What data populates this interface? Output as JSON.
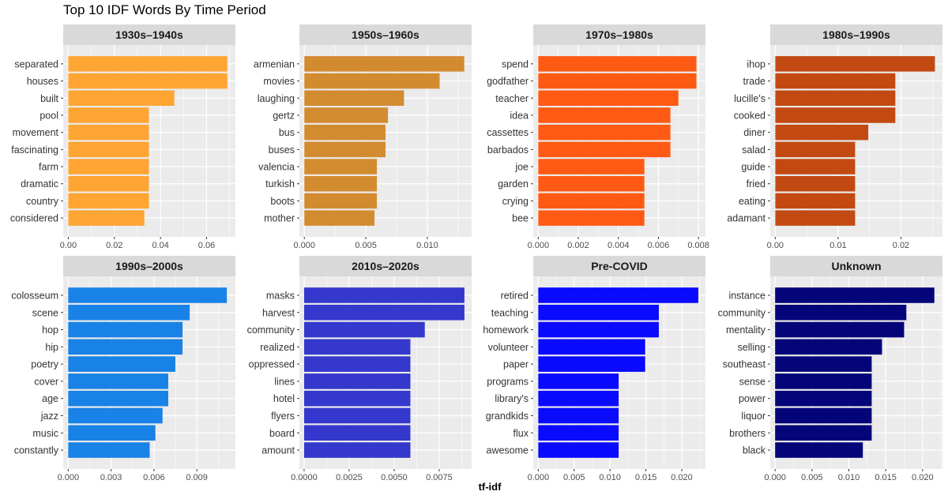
{
  "title": "Top 10 IDF Words By Time Period",
  "xlabel": "tf-idf",
  "chart_data": {
    "type": "bar",
    "orientation": "horizontal",
    "title": "Top 10 IDF Words By Time Period",
    "xlabel": "tf-idf",
    "ylabel": "",
    "grid": true,
    "legend": "none",
    "facets": [
      {
        "panel": "1930s–1940s",
        "color": "#FFA533",
        "xlim": [
          -0.0022,
          0.0725
        ],
        "xticks": [
          0,
          0.02,
          0.04,
          0.06
        ],
        "xtick_labels": [
          "0.00",
          "0.02",
          "0.04",
          "0.06"
        ],
        "categories": [
          "separated",
          "houses",
          "built",
          "pool",
          "movement",
          "fascinating",
          "farm",
          "dramatic",
          "country",
          "considered"
        ],
        "values": [
          0.069,
          0.069,
          0.046,
          0.035,
          0.035,
          0.035,
          0.035,
          0.035,
          0.035,
          0.033
        ]
      },
      {
        "panel": "1950s–1960s",
        "color": "#D38B30",
        "xlim": [
          -0.0004,
          0.0136
        ],
        "xticks": [
          0,
          0.005,
          0.01
        ],
        "xtick_labels": [
          "0.000",
          "0.005",
          "0.010"
        ],
        "categories": [
          "armenian",
          "movies",
          "laughing",
          "gertz",
          "bus",
          "buses",
          "valencia",
          "turkish",
          "boots",
          "mother"
        ],
        "values": [
          0.013,
          0.011,
          0.0081,
          0.0068,
          0.0066,
          0.0066,
          0.0059,
          0.0059,
          0.0059,
          0.0057
        ]
      },
      {
        "panel": "1970s–1980s",
        "color": "#FF5A14",
        "xlim": [
          -0.00025,
          0.00835
        ],
        "xticks": [
          0,
          0.002,
          0.004,
          0.006,
          0.008
        ],
        "xtick_labels": [
          "0.000",
          "0.002",
          "0.004",
          "0.006",
          "0.008"
        ],
        "categories": [
          "spend",
          "godfather",
          "teacher",
          "idea",
          "cassettes",
          "barbados",
          "joe",
          "garden",
          "crying",
          "bee"
        ],
        "values": [
          0.0079,
          0.0079,
          0.007,
          0.0066,
          0.0066,
          0.0066,
          0.0053,
          0.0053,
          0.0053,
          0.0053
        ]
      },
      {
        "panel": "1980s–1990s",
        "color": "#C24A12",
        "xlim": [
          -0.0008,
          0.0266
        ],
        "xticks": [
          0,
          0.01,
          0.02
        ],
        "xtick_labels": [
          "0.00",
          "0.01",
          "0.02"
        ],
        "categories": [
          "ihop",
          "trade",
          "lucille's",
          "cooked",
          "diner",
          "salad",
          "guide",
          "fried",
          "eating",
          "adamant"
        ],
        "values": [
          0.0254,
          0.0191,
          0.0191,
          0.0191,
          0.0148,
          0.0127,
          0.0127,
          0.0127,
          0.0127,
          0.0127
        ]
      },
      {
        "panel": "1990s–2000s",
        "color": "#1982E6",
        "xlim": [
          -0.00035,
          0.0117
        ],
        "xticks": [
          0,
          0.003,
          0.006,
          0.009
        ],
        "xtick_labels": [
          "0.000",
          "0.003",
          "0.006",
          "0.009"
        ],
        "categories": [
          "colosseum",
          "scene",
          "hop",
          "hip",
          "poetry",
          "cover",
          "age",
          "jazz",
          "music",
          "constantly"
        ],
        "values": [
          0.0111,
          0.0085,
          0.008,
          0.008,
          0.0075,
          0.007,
          0.007,
          0.0066,
          0.0061,
          0.0057
        ]
      },
      {
        "panel": "2010s–2020s",
        "color": "#3438CD",
        "xlim": [
          -0.00026,
          0.0093
        ],
        "xticks": [
          0,
          0.0025,
          0.005,
          0.0075
        ],
        "xtick_labels": [
          "0.0000",
          "0.0025",
          "0.0050",
          "0.0075"
        ],
        "categories": [
          "masks",
          "harvest",
          "community",
          "realized",
          "oppressed",
          "lines",
          "hotel",
          "flyers",
          "board",
          "amount"
        ],
        "values": [
          0.0089,
          0.0089,
          0.0067,
          0.0059,
          0.0059,
          0.0059,
          0.0059,
          0.0059,
          0.0059,
          0.0059
        ]
      },
      {
        "panel": "Pre-COVID",
        "color": "#0A0AFF",
        "xlim": [
          -0.0007,
          0.0233
        ],
        "xticks": [
          0,
          0.005,
          0.01,
          0.015,
          0.02
        ],
        "xtick_labels": [
          "0.000",
          "0.005",
          "0.010",
          "0.015",
          "0.020"
        ],
        "categories": [
          "retired",
          "teaching",
          "homework",
          "volunteer",
          "paper",
          "programs",
          "library's",
          "grandkids",
          "flux",
          "awesome"
        ],
        "values": [
          0.0223,
          0.0168,
          0.0168,
          0.0149,
          0.0149,
          0.0112,
          0.0112,
          0.0112,
          0.0112,
          0.0112
        ]
      },
      {
        "panel": "Unknown",
        "color": "#05057A",
        "xlim": [
          -0.00066,
          0.0227
        ],
        "xticks": [
          0,
          0.005,
          0.01,
          0.015,
          0.02
        ],
        "xtick_labels": [
          "0.000",
          "0.005",
          "0.010",
          "0.015",
          "0.020"
        ],
        "categories": [
          "instance",
          "community",
          "mentality",
          "selling",
          "southeast",
          "sense",
          "power",
          "liquor",
          "brothers",
          "black"
        ],
        "values": [
          0.0216,
          0.0178,
          0.0175,
          0.0145,
          0.0131,
          0.0131,
          0.0131,
          0.0131,
          0.0131,
          0.0119
        ]
      }
    ]
  }
}
